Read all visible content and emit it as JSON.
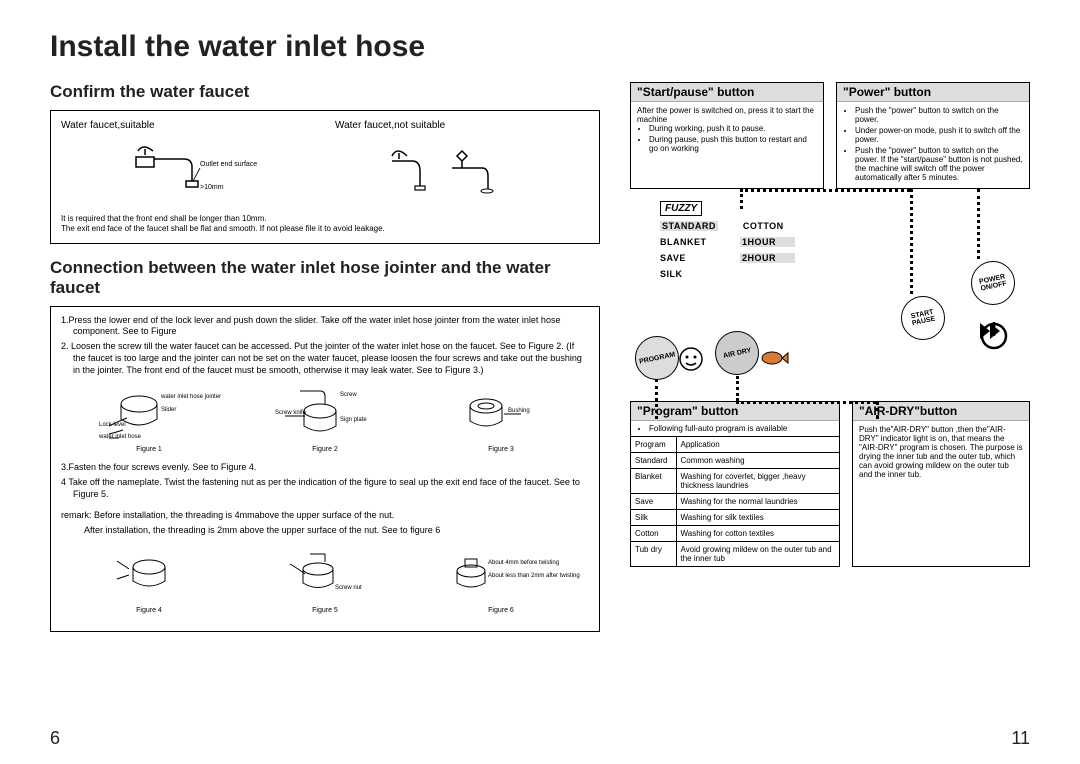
{
  "title": "Install the water inlet hose",
  "page_left_num": "6",
  "page_right_num": "11",
  "left": {
    "section1_title": "Confirm the water faucet",
    "faucet_suitable": "Water faucet,suitable",
    "faucet_notsuitable": "Water faucet,not suitable",
    "outlet_label": "Outlet end surface",
    "min_len": ">10mm",
    "note1": "It is required that the front end shall be longer than 10mm.",
    "note2": "The exit end face of the faucet shall be flat and smooth. If not please file it to avoid leakage.",
    "section2_title": "Connection between the water inlet hose jointer and the water faucet",
    "steps": [
      "1.Press the lower end of the lock lever and push down the slider. Take off the water inlet hose jointer from the water inlet hose component. See to Figure",
      "2. Loosen the screw till the water faucet can be accessed. Put the jointer of the water inlet hose on the faucet. See to Figure 2. (If the faucet is too large and the jointer can not be set on the water faucet, please loosen the four screws and take out the bushing in the jointer. The front end of the faucet must be smooth, otherwise  it may leak water. See to Figure 3.)"
    ],
    "fig1_labels": {
      "a": "water inlet hose jointer",
      "b": "Slider",
      "c": "Lock level",
      "d": "water inlet hose"
    },
    "fig2_labels": {
      "a": "Screw",
      "b": "Screw knife",
      "c": "Sign plate"
    },
    "fig3_label": "Bushing",
    "fig_captions": [
      "Figure 1",
      "Figure 2",
      "Figure 3"
    ],
    "step3": "3.Fasten the four screws evenly. See to Figure 4.",
    "step4": "4 Take off the nameplate. Twist the fastening nut as per the indication of the figure to seal up the exit end face of the faucet. See to Figure 5.",
    "remark1": "remark:  Before installation, the threading is 4mmabove the upper surface of the nut.",
    "remark2": "After installation, the threading is 2mm above the upper surface of the nut. See to figure 6",
    "fig4_captions": [
      "Figure 4",
      "Figure 5",
      "Figure 6"
    ],
    "fig5_label": "Screw nut",
    "fig6_labels": {
      "a": "About 4mm before twisting",
      "b": "About less than 2mm after twisting"
    }
  },
  "right": {
    "startpause_title": "\"Start/pause\" button",
    "startpause_items": [
      "After the power is switched on, press it to start the machine",
      "During working, push it to pause.",
      "During pause, push this button to restart and go on working"
    ],
    "power_title": "\"Power\" button",
    "power_items": [
      "Push the \"power\" button to switch on the power.",
      "Under power-on mode, push it to switch off the power.",
      "Push the \"power\" button to switch on the power. If the \"start/pause\" button is not pushed, the machine will switch off the power automatically after 5 minutes."
    ],
    "fuzzy": "FUZZY",
    "prog_labels": {
      "standard": "STANDARD",
      "cotton": "COTTON",
      "blanket": "BLANKET",
      "h1": "1HOUR",
      "save": "SAVE",
      "h2": "2HOUR",
      "silk": "SILK"
    },
    "btn_program": "PROGRAM",
    "btn_airdry": "AIR DRY",
    "btn_start": "START PAUSE",
    "btn_power": "POWER ON/OFF",
    "program_title": "\"Program\" button",
    "program_note": "Following full-auto program is available",
    "program_table": [
      [
        "Program",
        "Application"
      ],
      [
        "Standard",
        "Common washing"
      ],
      [
        "Blanket",
        "Washing for coverlet, bigger ,heavy thickness laundries"
      ],
      [
        "Save",
        "Washing for the normal laundries"
      ],
      [
        "Silk",
        "Washing for silk textiles"
      ],
      [
        "Cotton",
        "Washing for cotton textiles"
      ],
      [
        "Tub dry",
        "Avoid growing mildew on the outer tub and the inner tub"
      ]
    ],
    "airdry_title": "\"AIR-DRY\"button",
    "airdry_text": "Push the\"AIR-DRY\" button ,then  the\"AIR-DRY\" indicator light is on, that means the \"AIR-DRY\" program is chosen. The purpose is drying the inner tub and the outer tub, which can avoid growing mildew on the outer tub and the inner tub."
  }
}
